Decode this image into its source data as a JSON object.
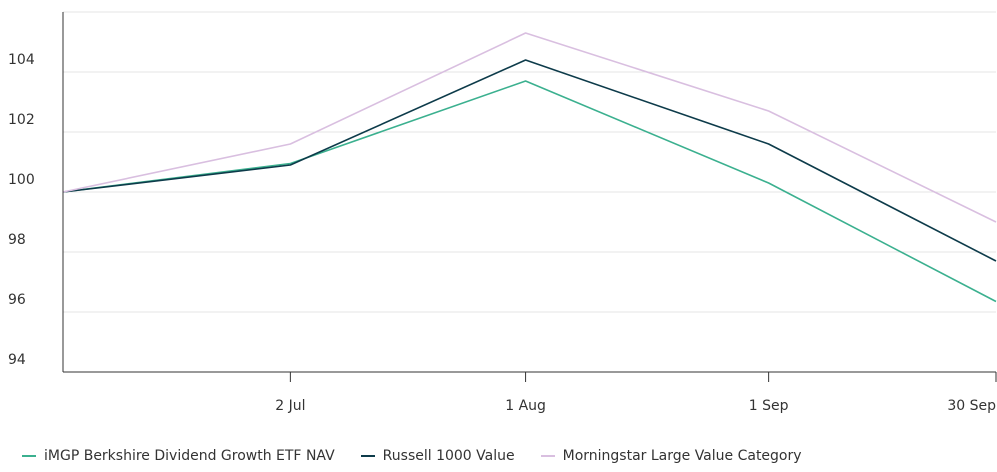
{
  "chart_data": {
    "type": "line",
    "x": [
      "2024-06-03",
      "2024-07-02",
      "2024-08-01",
      "2024-09-01",
      "2024-09-30"
    ],
    "xticks": [
      {
        "label": "2 Jul",
        "x": "2024-07-02"
      },
      {
        "label": "1 Aug",
        "x": "2024-08-01"
      },
      {
        "label": "1 Sep",
        "x": "2024-09-01"
      },
      {
        "label": "30 Sep",
        "x": "2024-09-30"
      }
    ],
    "yticks": [
      94,
      96,
      98,
      100,
      102,
      104
    ],
    "ylim": [
      94,
      106
    ],
    "grid": true,
    "legend_position": "bottom-left",
    "series": [
      {
        "name": "iMGP Berkshire Dividend Growth ETF NAV",
        "color": "#3bb08f",
        "values": [
          100.0,
          100.95,
          103.7,
          100.3,
          96.35
        ]
      },
      {
        "name": "Russell 1000 Value",
        "color": "#0d3b4a",
        "values": [
          100.0,
          100.9,
          104.4,
          101.6,
          97.7
        ]
      },
      {
        "name": "Morningstar Large Value Category",
        "color": "#d9bfe0",
        "values": [
          100.0,
          101.6,
          105.3,
          102.7,
          99.0
        ]
      }
    ]
  }
}
